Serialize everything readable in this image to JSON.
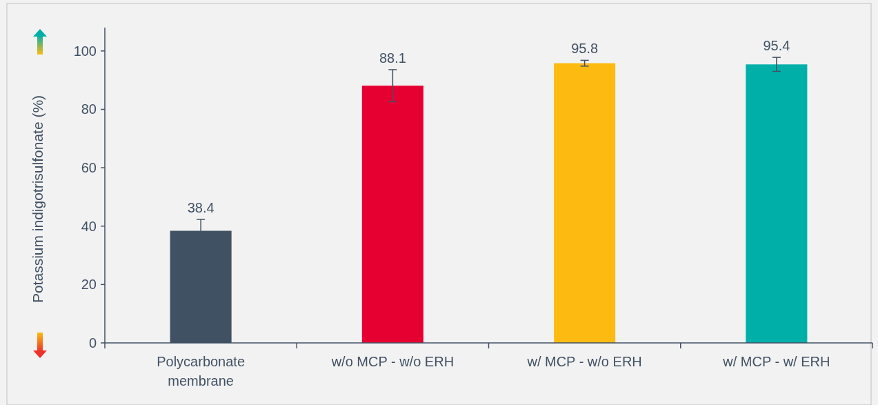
{
  "chart_data": {
    "type": "bar",
    "ylabel": "Potassium indigotrisulfonate (%)",
    "categories": [
      "Polycarbonate membrane",
      "w/o MCP - w/o ERH",
      "w/ MCP - w/o ERH",
      "w/ MCP - w/ ERH"
    ],
    "values": [
      38.4,
      88.1,
      95.8,
      95.4
    ],
    "colors": [
      "#415164",
      "#e60032",
      "#fdbb12",
      "#00b0a8"
    ],
    "errors": [
      3.9,
      5.5,
      1,
      2.4
    ],
    "data_labels": true,
    "ylim": [
      0,
      108
    ],
    "yticks": [
      0,
      20,
      40,
      60,
      80,
      100
    ],
    "grid": false
  }
}
